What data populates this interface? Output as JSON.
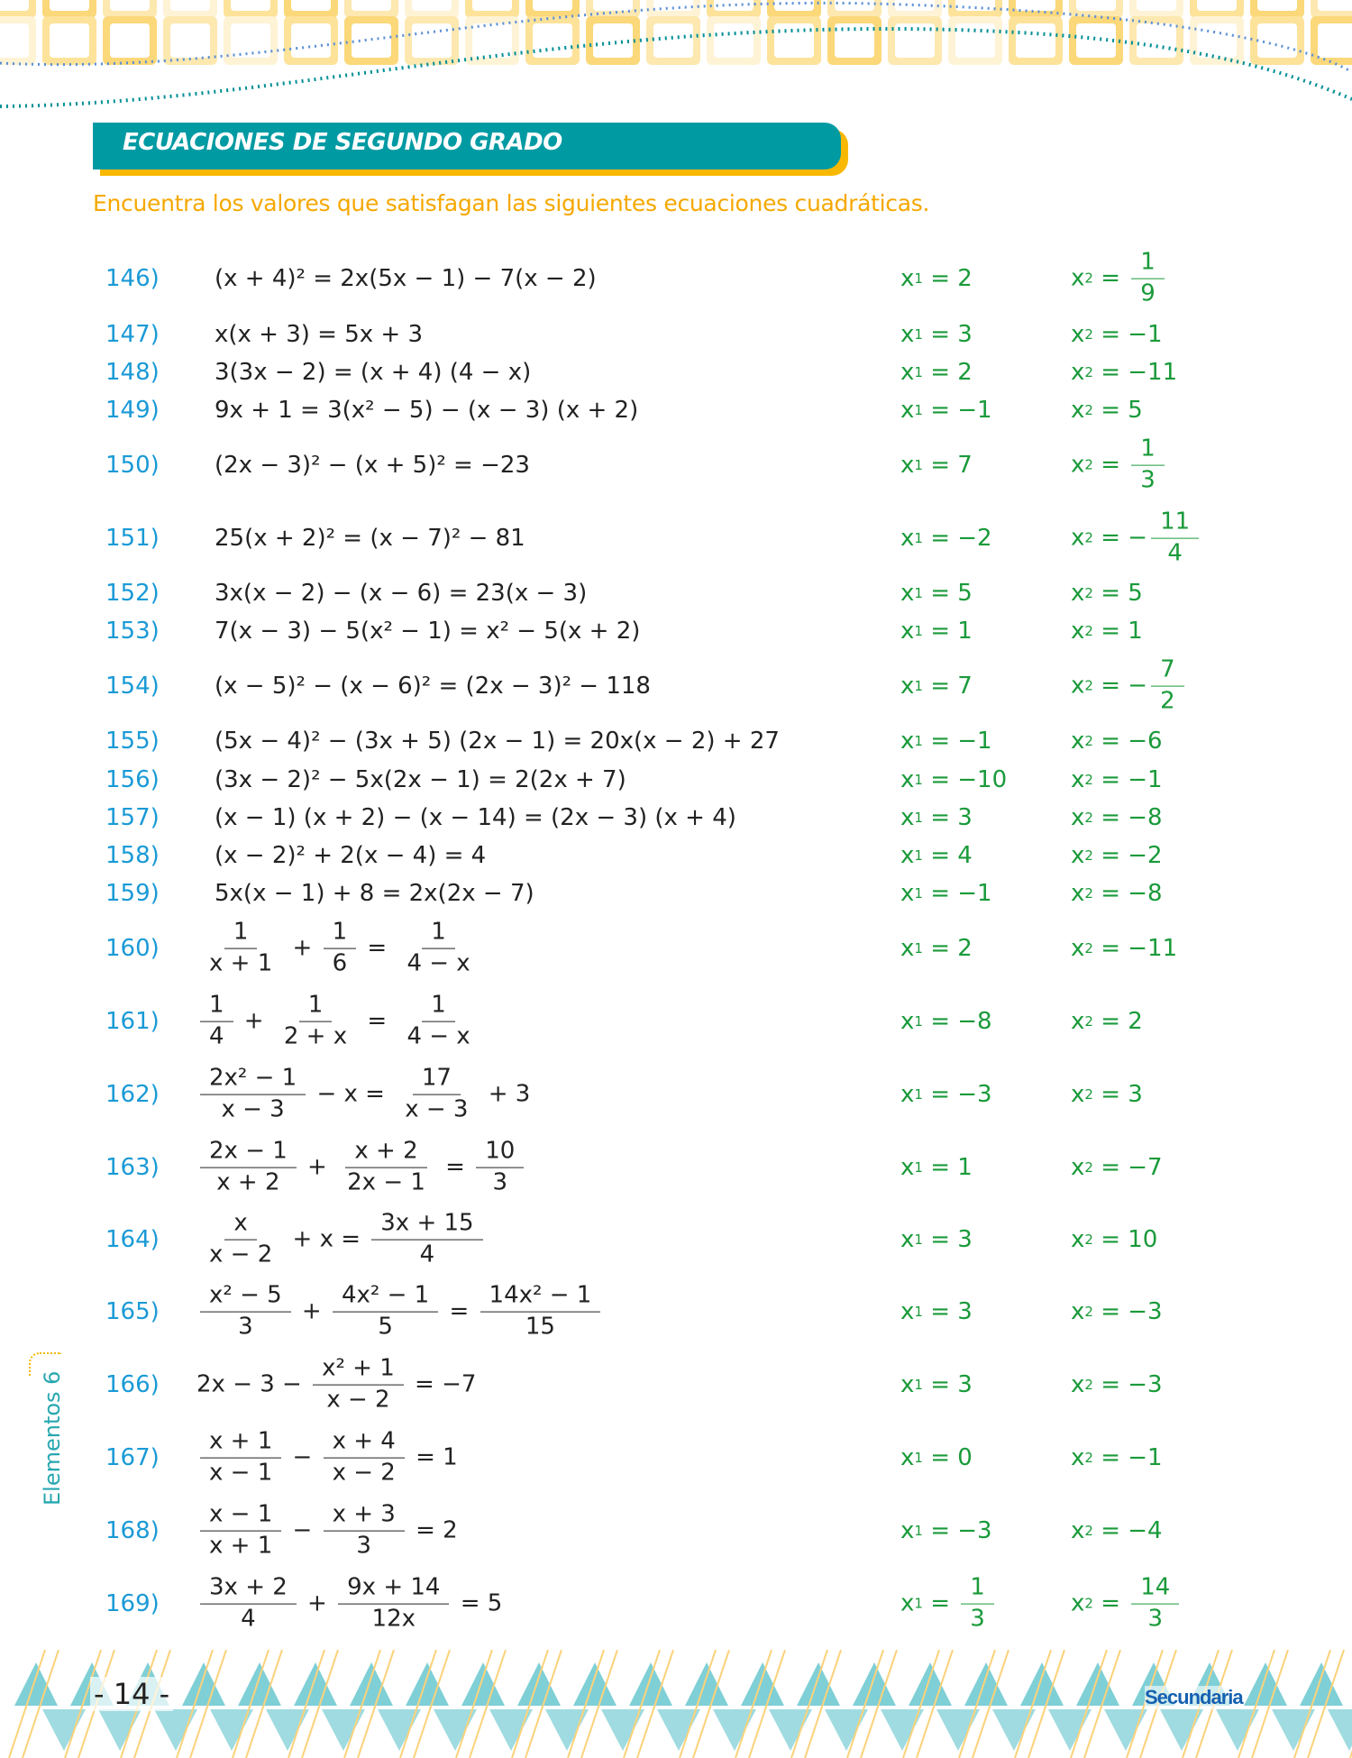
{
  "header": {
    "title": "ECUACIONES DE SEGUNDO GRADO",
    "instruction": "Encuentra los valores que satisfagan las siguientes ecuaciones cuadráticas."
  },
  "colors": {
    "accent": "#009aa3",
    "highlight": "#f9b800",
    "number": "#1a9ad6",
    "answer": "#1a9a3a",
    "brand": "#1560b0"
  },
  "exercises": [
    {
      "num": "146)",
      "eq": [
        "(x + 4)² = 2x(5x − 1) − 7(x − 2)"
      ],
      "x1": "2",
      "x2": {
        "n": "1",
        "d": "9"
      }
    },
    {
      "num": "147)",
      "eq": [
        "x(x + 3) = 5x + 3"
      ],
      "x1": "3",
      "x2": "−1"
    },
    {
      "num": "148)",
      "eq": [
        "3(3x − 2) = (x + 4) (4 − x)"
      ],
      "x1": "2",
      "x2": "−11"
    },
    {
      "num": "149)",
      "eq": [
        "9x + 1 = 3(x² − 5) − (x − 3) (x + 2)"
      ],
      "x1": "−1",
      "x2": "5"
    },
    {
      "num": "150)",
      "eq": [
        "(2x − 3)² − (x + 5)² = −23"
      ],
      "x1": "7",
      "x2": {
        "n": "1",
        "d": "3"
      }
    },
    {
      "num": "151)",
      "eq": [
        "25(x + 2)² = (x − 7)² − 81"
      ],
      "x1": "−2",
      "x2": {
        "sign": "−",
        "n": "11",
        "d": "4"
      }
    },
    {
      "num": "152)",
      "eq": [
        "3x(x − 2) − (x − 6) = 23(x − 3)"
      ],
      "x1": "5",
      "x2": "5"
    },
    {
      "num": "153)",
      "eq": [
        "7(x − 3) − 5(x² − 1) = x² − 5(x + 2)"
      ],
      "x1": "1",
      "x2": "1"
    },
    {
      "num": "154)",
      "eq": [
        "(x − 5)² − (x − 6)² = (2x − 3)² − 118"
      ],
      "x1": "7",
      "x2": {
        "sign": "−",
        "n": "7",
        "d": "2"
      }
    },
    {
      "num": "155)",
      "eq": [
        "(5x − 4)² − (3x + 5) (2x − 1) = 20x(x − 2) + 27"
      ],
      "x1": "−1",
      "x2": "−6"
    },
    {
      "num": "156)",
      "eq": [
        "(3x − 2)² − 5x(2x − 1) = 2(2x + 7)"
      ],
      "x1": "−10",
      "x2": "−1"
    },
    {
      "num": "157)",
      "eq": [
        "(x − 1) (x + 2) − (x − 14) = (2x − 3) (x + 4)"
      ],
      "x1": "3",
      "x2": "−8"
    },
    {
      "num": "158)",
      "eq": [
        "(x − 2)² + 2(x − 4) = 4"
      ],
      "x1": "4",
      "x2": "−2"
    },
    {
      "num": "159)",
      "eq": [
        "5x(x − 1) + 8 = 2x(2x − 7)"
      ],
      "x1": "−1",
      "x2": "−8"
    },
    {
      "num": "160)",
      "eq": [
        {
          "n": "1",
          "d": "x + 1"
        },
        " + ",
        {
          "n": "1",
          "d": "6"
        },
        " = ",
        {
          "n": "1",
          "d": "4 − x"
        }
      ],
      "x1": "2",
      "x2": "−11"
    },
    {
      "num": "161)",
      "eq": [
        {
          "n": "1",
          "d": "4"
        },
        " + ",
        {
          "n": "1",
          "d": "2 + x"
        },
        " = ",
        {
          "n": "1",
          "d": "4 − x"
        }
      ],
      "x1": "−8",
      "x2": "2"
    },
    {
      "num": "162)",
      "eq": [
        {
          "n": "2x² − 1",
          "d": "x − 3"
        },
        " − x = ",
        {
          "n": "17",
          "d": "x − 3"
        },
        " + 3"
      ],
      "x1": "−3",
      "x2": "3"
    },
    {
      "num": "163)",
      "eq": [
        {
          "n": "2x − 1",
          "d": "x + 2"
        },
        " + ",
        {
          "n": "x + 2",
          "d": "2x − 1"
        },
        " = ",
        {
          "n": "10",
          "d": "3"
        }
      ],
      "x1": "1",
      "x2": "−7"
    },
    {
      "num": "164)",
      "eq": [
        {
          "n": "x",
          "d": "x − 2"
        },
        " + x = ",
        {
          "n": "3x + 15",
          "d": "4"
        }
      ],
      "x1": "3",
      "x2": "10"
    },
    {
      "num": "165)",
      "eq": [
        {
          "n": "x² − 5",
          "d": "3"
        },
        " + ",
        {
          "n": "4x² − 1",
          "d": "5"
        },
        " = ",
        {
          "n": "14x² − 1",
          "d": "15"
        }
      ],
      "x1": "3",
      "x2": "−3"
    },
    {
      "num": "166)",
      "eq": [
        "2x − 3 − ",
        {
          "n": "x² + 1",
          "d": "x − 2"
        },
        " = −7"
      ],
      "x1": "3",
      "x2": "−3"
    },
    {
      "num": "167)",
      "eq": [
        {
          "n": "x + 1",
          "d": "x − 1"
        },
        " − ",
        {
          "n": "x + 4",
          "d": "x − 2"
        },
        " = 1"
      ],
      "x1": "0",
      "x2": "−1"
    },
    {
      "num": "168)",
      "eq": [
        {
          "n": "x − 1",
          "d": "x + 1"
        },
        " − ",
        {
          "n": "x + 3",
          "d": "3"
        },
        " = 2"
      ],
      "x1": "−3",
      "x2": "−4"
    },
    {
      "num": "169)",
      "eq": [
        {
          "n": "3x + 2",
          "d": "4"
        },
        " + ",
        {
          "n": "9x + 14",
          "d": "12x"
        },
        " = 5"
      ],
      "x1": {
        "n": "1",
        "d": "3"
      },
      "x2": {
        "n": "14",
        "d": "3"
      }
    }
  ],
  "answer_labels": {
    "var": "x",
    "sub1": "1",
    "sub2": "2",
    "eq": " = "
  },
  "side_label": "Elementos 6",
  "footer": {
    "page": "- 14 -",
    "brand": "Secundaria"
  }
}
